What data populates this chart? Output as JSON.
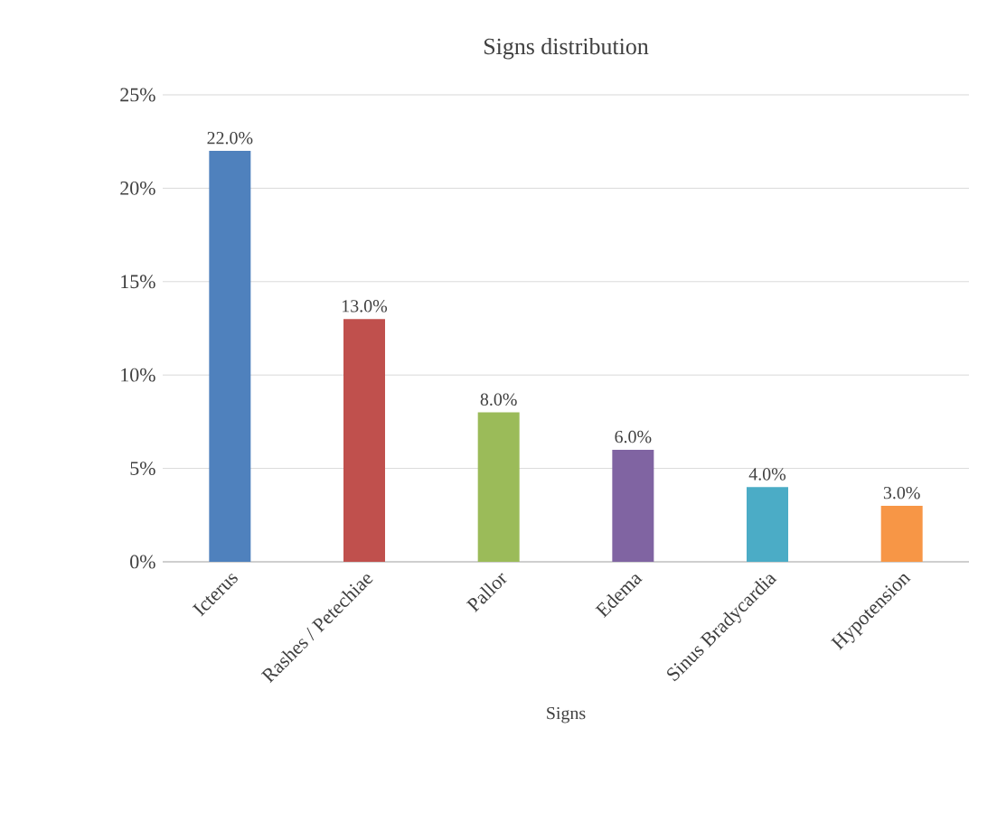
{
  "chart_data": {
    "type": "bar",
    "title": "Signs distribution",
    "xlabel": "Signs",
    "categories": [
      "Icterus",
      "Rashes / Petechiae",
      "Pallor",
      "Edema",
      "Sinus Bradycardia",
      "Hypotension"
    ],
    "values": [
      22,
      13,
      8,
      6,
      4,
      3
    ],
    "colors": [
      "#4f81bd",
      "#c0504d",
      "#9bbb59",
      "#8064a2",
      "#4bacc6",
      "#f79646"
    ],
    "value_labels": [
      "22.0%",
      "13.0%",
      "8.0%",
      "6.0%",
      "4.0%",
      "3.0%"
    ],
    "ylim": [
      0,
      25
    ],
    "yticks": [
      {
        "value": 0,
        "label": "0%"
      },
      {
        "value": 5,
        "label": "5%"
      },
      {
        "value": 10,
        "label": "10%"
      },
      {
        "value": 15,
        "label": "15%"
      },
      {
        "value": 20,
        "label": "20%"
      },
      {
        "value": 25,
        "label": "25%"
      }
    ],
    "grid": "y"
  }
}
